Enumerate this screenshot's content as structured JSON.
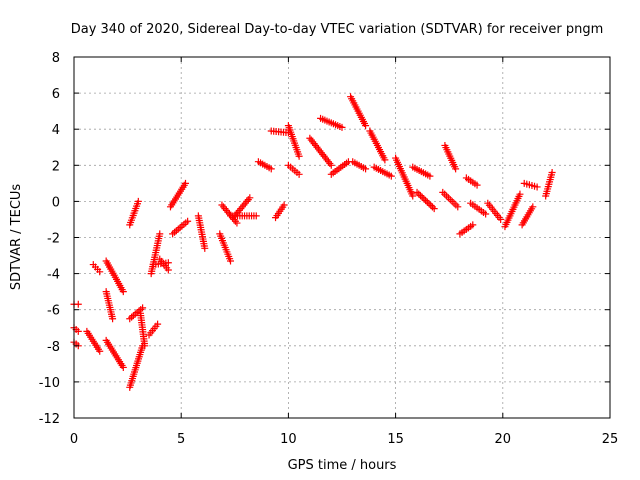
{
  "chart_data": {
    "type": "scatter",
    "title": "Day 340 of 2020, Sidereal Day-to-day VTEC variation (SDTVAR) for receiver pngm",
    "xlabel": "GPS time / hours",
    "ylabel": "SDTVAR / TECUs",
    "xlim": [
      0,
      25
    ],
    "ylim": [
      -12,
      8
    ],
    "xticks": [
      0,
      5,
      10,
      15,
      20,
      25
    ],
    "yticks": [
      -12,
      -10,
      -8,
      -6,
      -4,
      -2,
      0,
      2,
      4,
      6,
      8
    ],
    "grid": true,
    "marker": "+",
    "color": "#ff0000",
    "segments": [
      {
        "x": [
          0.0,
          0.2
        ],
        "y": [
          -5.7,
          -5.7
        ]
      },
      {
        "x": [
          0.0,
          0.2
        ],
        "y": [
          -7.0,
          -7.2
        ]
      },
      {
        "x": [
          0.0,
          0.2
        ],
        "y": [
          -7.8,
          -8.0
        ]
      },
      {
        "x": [
          0.6,
          1.2
        ],
        "y": [
          -7.2,
          -8.3
        ]
      },
      {
        "x": [
          0.9,
          1.2
        ],
        "y": [
          -3.5,
          -3.9
        ]
      },
      {
        "x": [
          1.5,
          2.3
        ],
        "y": [
          -3.3,
          -5.0
        ]
      },
      {
        "x": [
          1.5,
          2.3
        ],
        "y": [
          -7.7,
          -9.2
        ]
      },
      {
        "x": [
          1.5,
          1.8
        ],
        "y": [
          -5.0,
          -6.5
        ]
      },
      {
        "x": [
          2.6,
          3.2
        ],
        "y": [
          -10.3,
          -8.0
        ]
      },
      {
        "x": [
          2.6,
          3.2
        ],
        "y": [
          -6.5,
          -5.9
        ]
      },
      {
        "x": [
          2.6,
          3.0
        ],
        "y": [
          -1.3,
          0.0
        ]
      },
      {
        "x": [
          3.1,
          3.3
        ],
        "y": [
          -6.2,
          -8.0
        ]
      },
      {
        "x": [
          3.5,
          3.9
        ],
        "y": [
          -7.4,
          -6.8
        ]
      },
      {
        "x": [
          3.6,
          4.0
        ],
        "y": [
          -4.0,
          -1.8
        ]
      },
      {
        "x": [
          3.7,
          4.4
        ],
        "y": [
          -3.5,
          -3.4
        ]
      },
      {
        "x": [
          4.0,
          4.4
        ],
        "y": [
          -3.2,
          -3.8
        ]
      },
      {
        "x": [
          4.5,
          5.2
        ],
        "y": [
          -0.3,
          1.0
        ]
      },
      {
        "x": [
          4.6,
          5.3
        ],
        "y": [
          -1.8,
          -1.1
        ]
      },
      {
        "x": [
          5.8,
          6.1
        ],
        "y": [
          -0.8,
          -2.6
        ]
      },
      {
        "x": [
          6.8,
          7.3
        ],
        "y": [
          -1.8,
          -3.3
        ]
      },
      {
        "x": [
          6.9,
          7.6
        ],
        "y": [
          -0.2,
          -1.2
        ]
      },
      {
        "x": [
          7.5,
          8.2
        ],
        "y": [
          -0.8,
          0.2
        ]
      },
      {
        "x": [
          7.3,
          8.5
        ],
        "y": [
          -0.8,
          -0.8
        ]
      },
      {
        "x": [
          8.6,
          9.2
        ],
        "y": [
          2.2,
          1.8
        ]
      },
      {
        "x": [
          9.4,
          9.8
        ],
        "y": [
          -0.9,
          -0.2
        ]
      },
      {
        "x": [
          9.2,
          10.0
        ],
        "y": [
          3.9,
          3.8
        ]
      },
      {
        "x": [
          10.0,
          10.5
        ],
        "y": [
          4.2,
          2.5
        ]
      },
      {
        "x": [
          10.0,
          10.5
        ],
        "y": [
          2.0,
          1.5
        ]
      },
      {
        "x": [
          11.0,
          12.0
        ],
        "y": [
          3.5,
          2.0
        ]
      },
      {
        "x": [
          11.5,
          12.5
        ],
        "y": [
          4.6,
          4.1
        ]
      },
      {
        "x": [
          12.0,
          12.8
        ],
        "y": [
          1.5,
          2.2
        ]
      },
      {
        "x": [
          12.9,
          13.6
        ],
        "y": [
          5.8,
          4.2
        ]
      },
      {
        "x": [
          13.0,
          13.6
        ],
        "y": [
          2.2,
          1.8
        ]
      },
      {
        "x": [
          13.8,
          14.5
        ],
        "y": [
          3.9,
          2.3
        ]
      },
      {
        "x": [
          14.0,
          14.8
        ],
        "y": [
          1.9,
          1.4
        ]
      },
      {
        "x": [
          15.0,
          15.8
        ],
        "y": [
          2.4,
          0.3
        ]
      },
      {
        "x": [
          15.8,
          16.6
        ],
        "y": [
          1.9,
          1.4
        ]
      },
      {
        "x": [
          16.0,
          16.8
        ],
        "y": [
          0.5,
          -0.4
        ]
      },
      {
        "x": [
          17.3,
          17.8
        ],
        "y": [
          3.1,
          1.8
        ]
      },
      {
        "x": [
          17.2,
          17.9
        ],
        "y": [
          0.5,
          -0.3
        ]
      },
      {
        "x": [
          18.0,
          18.6
        ],
        "y": [
          -1.8,
          -1.3
        ]
      },
      {
        "x": [
          18.3,
          18.8
        ],
        "y": [
          1.3,
          0.9
        ]
      },
      {
        "x": [
          18.5,
          19.2
        ],
        "y": [
          -0.1,
          -0.7
        ]
      },
      {
        "x": [
          19.3,
          19.9
        ],
        "y": [
          -0.1,
          -1.0
        ]
      },
      {
        "x": [
          20.1,
          20.8
        ],
        "y": [
          -1.4,
          0.4
        ]
      },
      {
        "x": [
          20.9,
          21.4
        ],
        "y": [
          -1.3,
          -0.3
        ]
      },
      {
        "x": [
          21.0,
          21.6
        ],
        "y": [
          1.0,
          0.8
        ]
      },
      {
        "x": [
          22.0,
          22.3
        ],
        "y": [
          0.3,
          1.6
        ]
      }
    ]
  }
}
